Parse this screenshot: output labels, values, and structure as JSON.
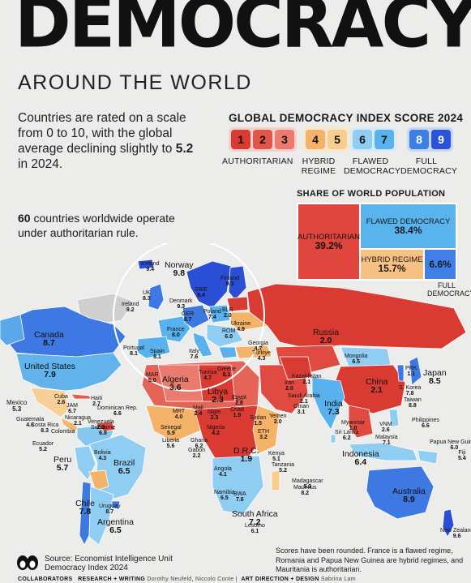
{
  "title": "DEMOCRACY",
  "subtitle": "AROUND THE WORLD",
  "intro": {
    "text": "Countries are rated on a scale from 0 to 10, with the global average declining slightly to",
    "value": "5.2",
    "suffix": " in 2024."
  },
  "authoritarian_note": {
    "count": "60",
    "text": " countries worldwide operate under authoritarian rule."
  },
  "scale": {
    "title": "GLOBAL DEMOCRACY INDEX SCORE 2024",
    "groups": [
      {
        "label": "AUTHORITARIAN",
        "steps": [
          "1",
          "2",
          "3"
        ],
        "colors": [
          "#d93b33",
          "#e2564c",
          "#ec7b6f"
        ],
        "bg": "#f6d0cb"
      },
      {
        "label": "HYBRID REGIME",
        "steps": [
          "4",
          "5"
        ],
        "colors": [
          "#f4b368",
          "#f8cd8e"
        ],
        "bg": "#fbe7cc"
      },
      {
        "label": "FLAWED DEMOCRACY",
        "steps": [
          "6",
          "7"
        ],
        "colors": [
          "#8fcdf2",
          "#57b2ee"
        ],
        "bg": "#d5ebf9"
      },
      {
        "label": "FULL DEMOCRACY",
        "steps": [
          "8",
          "9"
        ],
        "colors": [
          "#3c7fe6",
          "#2a53d6"
        ],
        "bg": "#c6d6f4"
      }
    ]
  },
  "share": {
    "title": "SHARE OF WORLD POPULATION",
    "authoritarian": {
      "label": "AUTHORITARIAN",
      "value": "39.2%"
    },
    "flawed": {
      "label": "FLAWED DEMOCRACY",
      "value": "38.4%"
    },
    "hybrid": {
      "label": "HYBRID REGIME",
      "value": "15.7%"
    },
    "full": {
      "label": "FULL DEMOCRACY",
      "value": "6.6%"
    }
  },
  "countries": [
    {
      "name": "Canada",
      "score": "8.7"
    },
    {
      "name": "United States",
      "score": "7.9"
    },
    {
      "name": "Mexico",
      "score": "5.3"
    },
    {
      "name": "Cuba",
      "score": "2.6"
    },
    {
      "name": "Haiti",
      "score": "2.7"
    },
    {
      "name": "JAM",
      "score": "6.7"
    },
    {
      "name": "Dominican Rep.",
      "score": "6.6"
    },
    {
      "name": "Guatemala",
      "score": "4.6"
    },
    {
      "name": "Nicaragua",
      "score": "2.1"
    },
    {
      "name": "Costa Rica",
      "score": "8.3"
    },
    {
      "name": "Venezuela",
      "score": "2.3"
    },
    {
      "name": "Suriname",
      "score": "6.8"
    },
    {
      "name": "Colombia",
      "score": ""
    },
    {
      "name": "Ecuador",
      "score": "5.2"
    },
    {
      "name": "Peru",
      "score": "5.7"
    },
    {
      "name": "Brazil",
      "score": "6.5"
    },
    {
      "name": "Bolivia",
      "score": "4.3"
    },
    {
      "name": "Chile",
      "score": "7.8"
    },
    {
      "name": "Uruguay",
      "score": "8.7"
    },
    {
      "name": "Argentina",
      "score": "6.5"
    },
    {
      "name": "Iceland",
      "score": "9.4"
    },
    {
      "name": "Norway",
      "score": "9.8"
    },
    {
      "name": "Finland",
      "score": "9.3"
    },
    {
      "name": "SWE",
      "score": "9.4"
    },
    {
      "name": "UK",
      "score": "8.3"
    },
    {
      "name": "Ireland",
      "score": "9.2"
    },
    {
      "name": "Denmark",
      "score": "9.3"
    },
    {
      "name": "GER",
      "score": "8.7"
    },
    {
      "name": "Poland",
      "score": "7.4"
    },
    {
      "name": "BLR",
      "score": "2.0"
    },
    {
      "name": "Ukraine",
      "score": "4.9"
    },
    {
      "name": "France",
      "score": "8.0"
    },
    {
      "name": "Portugal",
      "score": "8.1"
    },
    {
      "name": "Spain",
      "score": "8.1"
    },
    {
      "name": "Italy",
      "score": "7.6"
    },
    {
      "name": "ROM",
      "score": "6.0"
    },
    {
      "name": "Greece",
      "score": "8.1"
    },
    {
      "name": "Tunisia",
      "score": "4.7"
    },
    {
      "name": "Georgia",
      "score": "4.7"
    },
    {
      "name": "Türkiye",
      "score": "4.3"
    },
    {
      "name": "Russia",
      "score": "2.0"
    },
    {
      "name": "Kazakhstan",
      "score": "2.1"
    },
    {
      "name": "Mongolia",
      "score": "6.5"
    },
    {
      "name": "PRK",
      "score": "1.1"
    },
    {
      "name": "Japan",
      "score": "8.5"
    },
    {
      "name": "S. Korea",
      "score": "7.8"
    },
    {
      "name": "Taiwan",
      "score": "8.8"
    },
    {
      "name": "China",
      "score": "2.1"
    },
    {
      "name": "India",
      "score": "7.3"
    },
    {
      "name": "Iran",
      "score": "2.0"
    },
    {
      "name": "Saudi Arabia",
      "score": "2.1"
    },
    {
      "name": "Oman",
      "score": "3.1"
    },
    {
      "name": "Yemen",
      "score": "2.0"
    },
    {
      "name": "Egypt",
      "score": "2.8"
    },
    {
      "name": "Libya",
      "score": "2.3"
    },
    {
      "name": "Algeria",
      "score": "3.6"
    },
    {
      "name": "MAR",
      "score": "5.0"
    },
    {
      "name": "MRT",
      "score": "4.0"
    },
    {
      "name": "Mali",
      "score": "2.4"
    },
    {
      "name": "Niger",
      "score": "2.3"
    },
    {
      "name": "Chad",
      "score": "1.9"
    },
    {
      "name": "Sudan",
      "score": "1.5"
    },
    {
      "name": "ETH",
      "score": "3.2"
    },
    {
      "name": "Senegal",
      "score": "5.9"
    },
    {
      "name": "Nigeria",
      "score": "4.2"
    },
    {
      "name": "Liberia",
      "score": "5.6"
    },
    {
      "name": "Ghana",
      "score": "6.2"
    },
    {
      "name": "Gabon",
      "score": "2.2"
    },
    {
      "name": "D.R.C.",
      "score": "1.9"
    },
    {
      "name": "Kenya",
      "score": "5.1"
    },
    {
      "name": "Tanzania",
      "score": "5.2"
    },
    {
      "name": "Angola",
      "score": "4.1"
    },
    {
      "name": "Namibia",
      "score": "6.5"
    },
    {
      "name": "BWA",
      "score": "7.6"
    },
    {
      "name": "Madagascar",
      "score": "5.3"
    },
    {
      "name": "Mauritius",
      "score": "8.2"
    },
    {
      "name": "Lesotho",
      "score": "6.1"
    },
    {
      "name": "South Africa",
      "score": "7.2"
    },
    {
      "name": "Myanmar",
      "score": "1.0"
    },
    {
      "name": "Sri Lanka",
      "score": "6.2"
    },
    {
      "name": "VNM",
      "score": "2.6"
    },
    {
      "name": "Malaysia",
      "score": "7.1"
    },
    {
      "name": "Philippines",
      "score": "6.6"
    },
    {
      "name": "Indonesia",
      "score": "6.4"
    },
    {
      "name": "Papua New Guinea",
      "score": "6.0"
    },
    {
      "name": "Fiji",
      "score": "5.4"
    },
    {
      "name": "Australia",
      "score": "8.9"
    },
    {
      "name": "New Zealand",
      "score": "9.6"
    }
  ],
  "source": {
    "label": "Source: Economist Intelligence Unit",
    "dataset": "Democracy Index 2024"
  },
  "footnote": "Scores have been rounded. France is a flawed regime, Romania and Papua New Guinea are hybrid regimes, and Mauritania is authoritarian.",
  "credits": {
    "brand": "COLLABORATORS",
    "research": "RESEARCH + WRITING",
    "research_names": "Dorothy Neufeld, Niccolo Conte",
    "art": "ART DIRECTION + DESIGN",
    "art_names": "Sabrina Lam"
  }
}
